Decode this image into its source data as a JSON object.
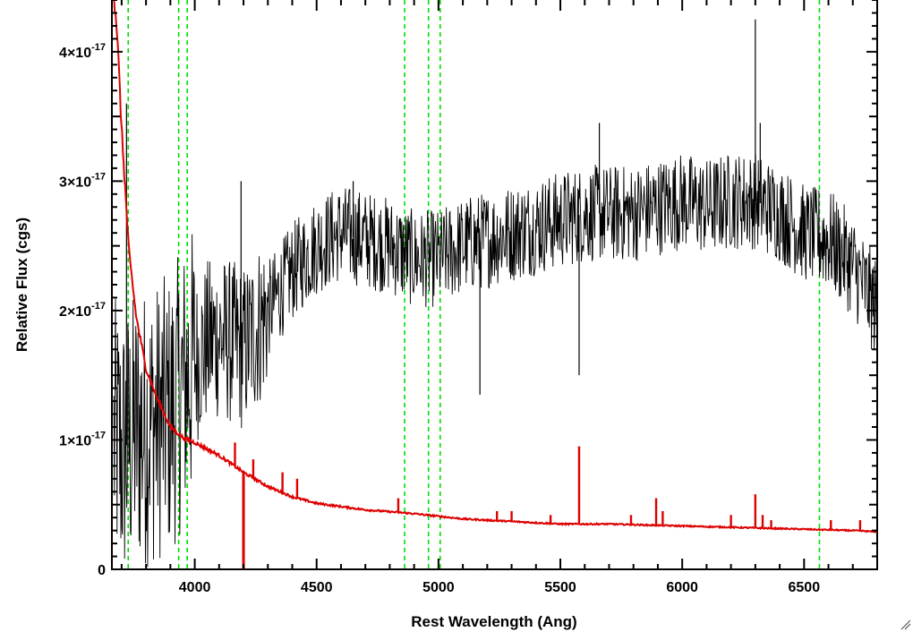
{
  "chart_data": {
    "type": "line",
    "title": "",
    "xlabel": "Rest Wavelength (Ang)",
    "ylabel": "Relative Flux (cgs)",
    "xlim": [
      3660,
      6800
    ],
    "ylim": [
      0,
      4.4e-17
    ],
    "x_ticks": [
      {
        "value": 4000,
        "label": "4000"
      },
      {
        "value": 4500,
        "label": "4500"
      },
      {
        "value": 5000,
        "label": "5000"
      },
      {
        "value": 5500,
        "label": "5500"
      },
      {
        "value": 6000,
        "label": "6000"
      },
      {
        "value": 6500,
        "label": "6500"
      }
    ],
    "y_ticks": [
      {
        "value": 0,
        "mantissa": "0",
        "exponent": ""
      },
      {
        "value": 1e-17,
        "mantissa": "1×10",
        "exponent": "-17"
      },
      {
        "value": 2e-17,
        "mantissa": "2×10",
        "exponent": "-17"
      },
      {
        "value": 3e-17,
        "mantissa": "3×10",
        "exponent": "-17"
      },
      {
        "value": 4e-17,
        "mantissa": "4×10",
        "exponent": "-17"
      }
    ],
    "grid": false,
    "reference_lines": {
      "color": "#00dd00",
      "style": "dashed",
      "x": [
        3727,
        3934,
        3969,
        4861,
        4959,
        5007,
        6563
      ]
    },
    "series": [
      {
        "color": "#000000",
        "style": "noisy spectrum",
        "x": [
          3680,
          3700,
          3750,
          3800,
          3850,
          3900,
          3950,
          4000,
          4050,
          4100,
          4200,
          4300,
          4400,
          4500,
          4600,
          4700,
          4800,
          4900,
          5000,
          5100,
          5200,
          5300,
          5400,
          5500,
          5600,
          5700,
          5800,
          5900,
          6000,
          6100,
          6200,
          6300,
          6400,
          6500,
          6600,
          6700,
          6800
        ],
        "y": [
          1e-17,
          9e-18,
          1.05e-17,
          1.1e-17,
          1.15e-17,
          1.2e-17,
          1.4e-17,
          1.6e-17,
          1.75e-17,
          1.8e-17,
          1.7e-17,
          2e-17,
          2.3e-17,
          2.5e-17,
          2.6e-17,
          2.55e-17,
          2.5e-17,
          2.4e-17,
          2.4e-17,
          2.5e-17,
          2.55e-17,
          2.6e-17,
          2.65e-17,
          2.7e-17,
          2.75e-17,
          2.75e-17,
          2.75e-17,
          2.8e-17,
          2.85e-17,
          2.8e-17,
          2.85e-17,
          2.85e-17,
          2.75e-17,
          2.6e-17,
          2.55e-17,
          2.35e-17,
          2e-17
        ],
        "spikes": [
          {
            "x": 3720,
            "y": 3.6e-17
          },
          {
            "x": 4190,
            "y": 3e-17
          },
          {
            "x": 4650,
            "y": 3e-17
          },
          {
            "x": 5170,
            "y": 1.35e-17
          },
          {
            "x": 5577,
            "y": 1.5e-17
          },
          {
            "x": 5660,
            "y": 3.45e-17
          },
          {
            "x": 6300,
            "y": 4.25e-17
          },
          {
            "x": 6320,
            "y": 3.45e-17
          }
        ]
      },
      {
        "color": "#dd0000",
        "style": "smooth error/sky spectrum",
        "x": [
          3665,
          3680,
          3700,
          3730,
          3760,
          3800,
          3850,
          3900,
          3950,
          4000,
          4100,
          4200,
          4300,
          4400,
          4500,
          4700,
          4900,
          5100,
          5300,
          5500,
          5700,
          5900,
          6100,
          6300,
          6500,
          6700,
          6800
        ],
        "y": [
          4.5e-17,
          4.2e-17,
          3.4e-17,
          2.45e-17,
          1.95e-17,
          1.55e-17,
          1.3e-17,
          1.1e-17,
          1.02e-17,
          9.8e-18,
          8.8e-18,
          7.5e-18,
          6.4e-18,
          5.6e-18,
          5.1e-18,
          4.6e-18,
          4.3e-18,
          3.9e-18,
          3.7e-18,
          3.5e-18,
          3.5e-18,
          3.4e-18,
          3.3e-18,
          3.2e-18,
          3.1e-18,
          3e-18,
          2.9e-18
        ],
        "emission_lines": [
          {
            "x": 4165,
            "y": 9.8e-18
          },
          {
            "x": 4240,
            "y": 8.5e-18
          },
          {
            "x": 4360,
            "y": 7.5e-18
          },
          {
            "x": 4420,
            "y": 7e-18
          },
          {
            "x": 4835,
            "y": 5.5e-18
          },
          {
            "x": 5240,
            "y": 4.5e-18
          },
          {
            "x": 5300,
            "y": 4.5e-18
          },
          {
            "x": 5460,
            "y": 4.2e-18
          },
          {
            "x": 5577,
            "y": 9.5e-18
          },
          {
            "x": 5790,
            "y": 4.2e-18
          },
          {
            "x": 5893,
            "y": 5.5e-18
          },
          {
            "x": 5920,
            "y": 4.5e-18
          },
          {
            "x": 6200,
            "y": 4.2e-18
          },
          {
            "x": 6300,
            "y": 5.8e-18
          },
          {
            "x": 6330,
            "y": 4.2e-18
          },
          {
            "x": 6365,
            "y": 3.8e-18
          },
          {
            "x": 6610,
            "y": 3.8e-18
          },
          {
            "x": 6730,
            "y": 3.8e-18
          }
        ],
        "absorption_lines": [
          {
            "x": 4200,
            "y": 0
          }
        ]
      }
    ],
    "legend": "none"
  }
}
